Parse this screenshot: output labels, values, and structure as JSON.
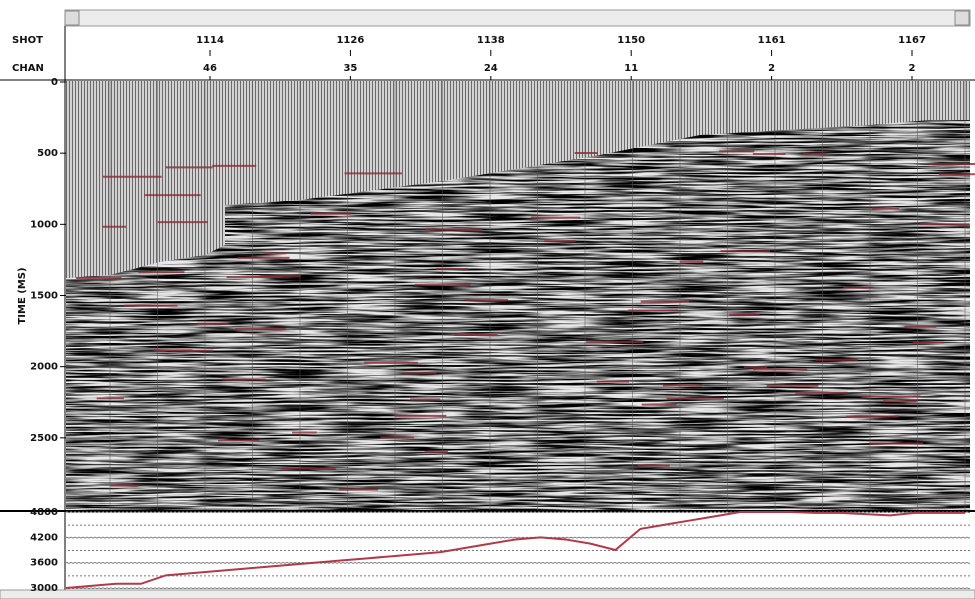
{
  "chart_data": [
    {
      "type": "seismic",
      "row_labels": [
        "SHOT",
        "CHAN"
      ],
      "categories": [
        "1114",
        "1126",
        "1138",
        "1150",
        "1161",
        "1167"
      ],
      "chan": [
        "46",
        "35",
        "24",
        "11",
        "2",
        "2"
      ],
      "ylabel": "TIME (MS)",
      "ylim": [
        0,
        3000
      ],
      "yticks": [
        0,
        500,
        1000,
        1500,
        2000,
        2500
      ]
    },
    {
      "type": "line",
      "color": "#b03a48",
      "ylim": [
        3000,
        4800
      ],
      "yticks": [
        3000,
        3600,
        4200,
        4800
      ],
      "values": [
        3000,
        3050,
        3100,
        3100,
        3300,
        3350,
        3400,
        3450,
        3500,
        3550,
        3600,
        3650,
        3700,
        3750,
        3800,
        3850,
        3950,
        4050,
        4150,
        4200,
        4150,
        4050,
        3900,
        4400,
        4500,
        4600,
        4700,
        4800,
        4800,
        4800,
        4780,
        4780,
        4750,
        4720,
        4780,
        4780,
        4780
      ]
    }
  ]
}
